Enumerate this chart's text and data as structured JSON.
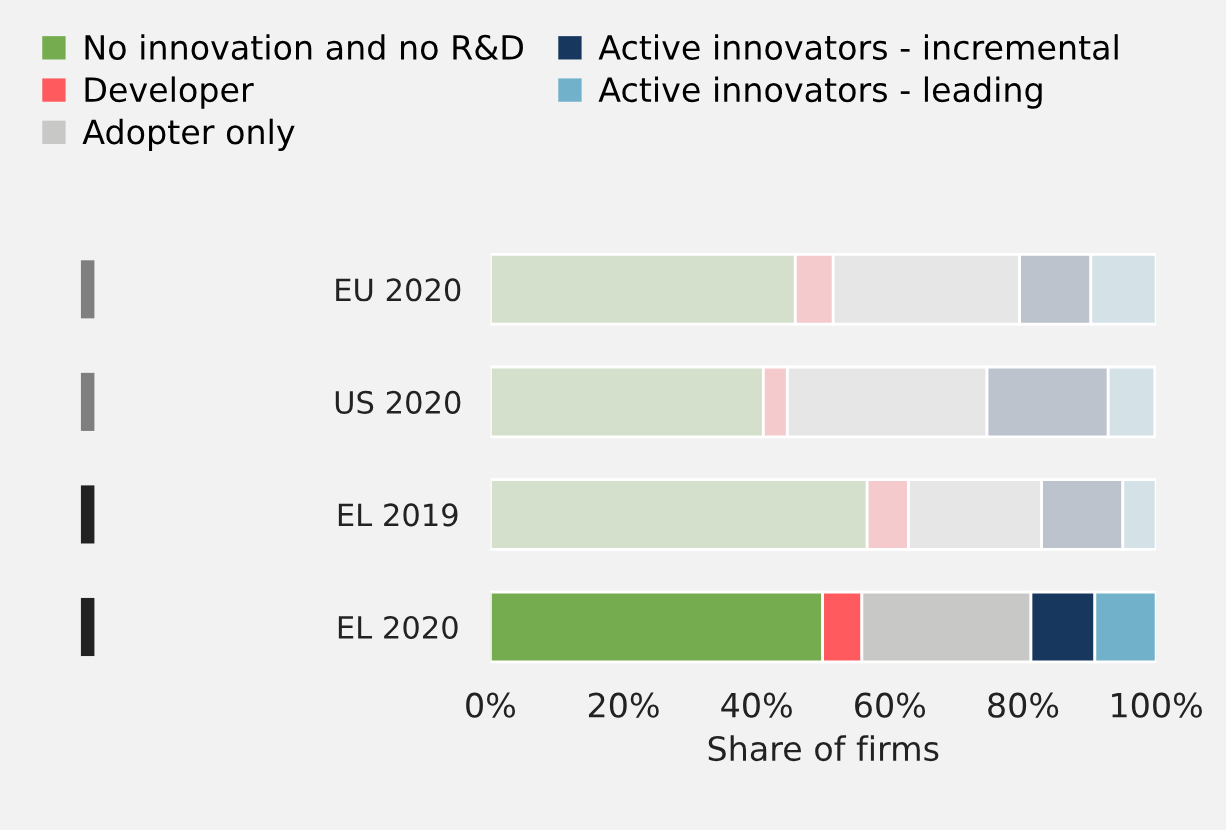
{
  "chart_data": {
    "type": "bar",
    "orientation": "horizontal",
    "stacked": true,
    "xlabel": "Share of firms",
    "categories": [
      "EU 2020",
      "US 2020",
      "EL 2019",
      "EL 2020"
    ],
    "series": [
      {
        "name": "No innovation and no R&D",
        "color": "#74ac4f",
        "colors": [
          "#d4e0cb",
          "#d4e0cb",
          "#d4e0cb",
          "#74ac4f"
        ],
        "values": [
          45.8,
          41.0,
          56.6,
          49.9
        ]
      },
      {
        "name": "Developer",
        "color": "#ff5b5f",
        "colors": [
          "#f5cacd",
          "#f5cacd",
          "#f5cacd",
          "#ff5b5f"
        ],
        "values": [
          5.7,
          3.6,
          6.2,
          5.9
        ]
      },
      {
        "name": "Adopter only",
        "color": "#c8c8c6",
        "colors": [
          "#e6e6e6",
          "#e6e6e6",
          "#e6e6e6",
          "#c8c8c6"
        ],
        "values": [
          28.0,
          30.0,
          20.0,
          25.4
        ]
      },
      {
        "name": "Active innovators - incremental",
        "color": "#17375f",
        "colors": [
          "#bcc3cd",
          "#bcc3cd",
          "#bcc3cd",
          "#17375f"
        ],
        "values": [
          10.7,
          18.2,
          12.2,
          9.6
        ]
      },
      {
        "name": "Active innovators - leading",
        "color": "#71b1ca",
        "colors": [
          "#d4e1e7",
          "#d4e1e7",
          "#d4e1e7",
          "#71b1ca"
        ],
        "values": [
          9.8,
          7.0,
          5.0,
          9.2
        ]
      }
    ],
    "xlim": [
      0,
      100
    ],
    "xticks": [
      {
        "value": 0,
        "label": "0%"
      },
      {
        "value": 20,
        "label": "20%"
      },
      {
        "value": 40,
        "label": "40%"
      },
      {
        "value": 60,
        "label": "60%"
      },
      {
        "value": 80,
        "label": "80%"
      },
      {
        "value": 100,
        "label": "100%"
      }
    ],
    "legend": "top",
    "grid": false
  }
}
